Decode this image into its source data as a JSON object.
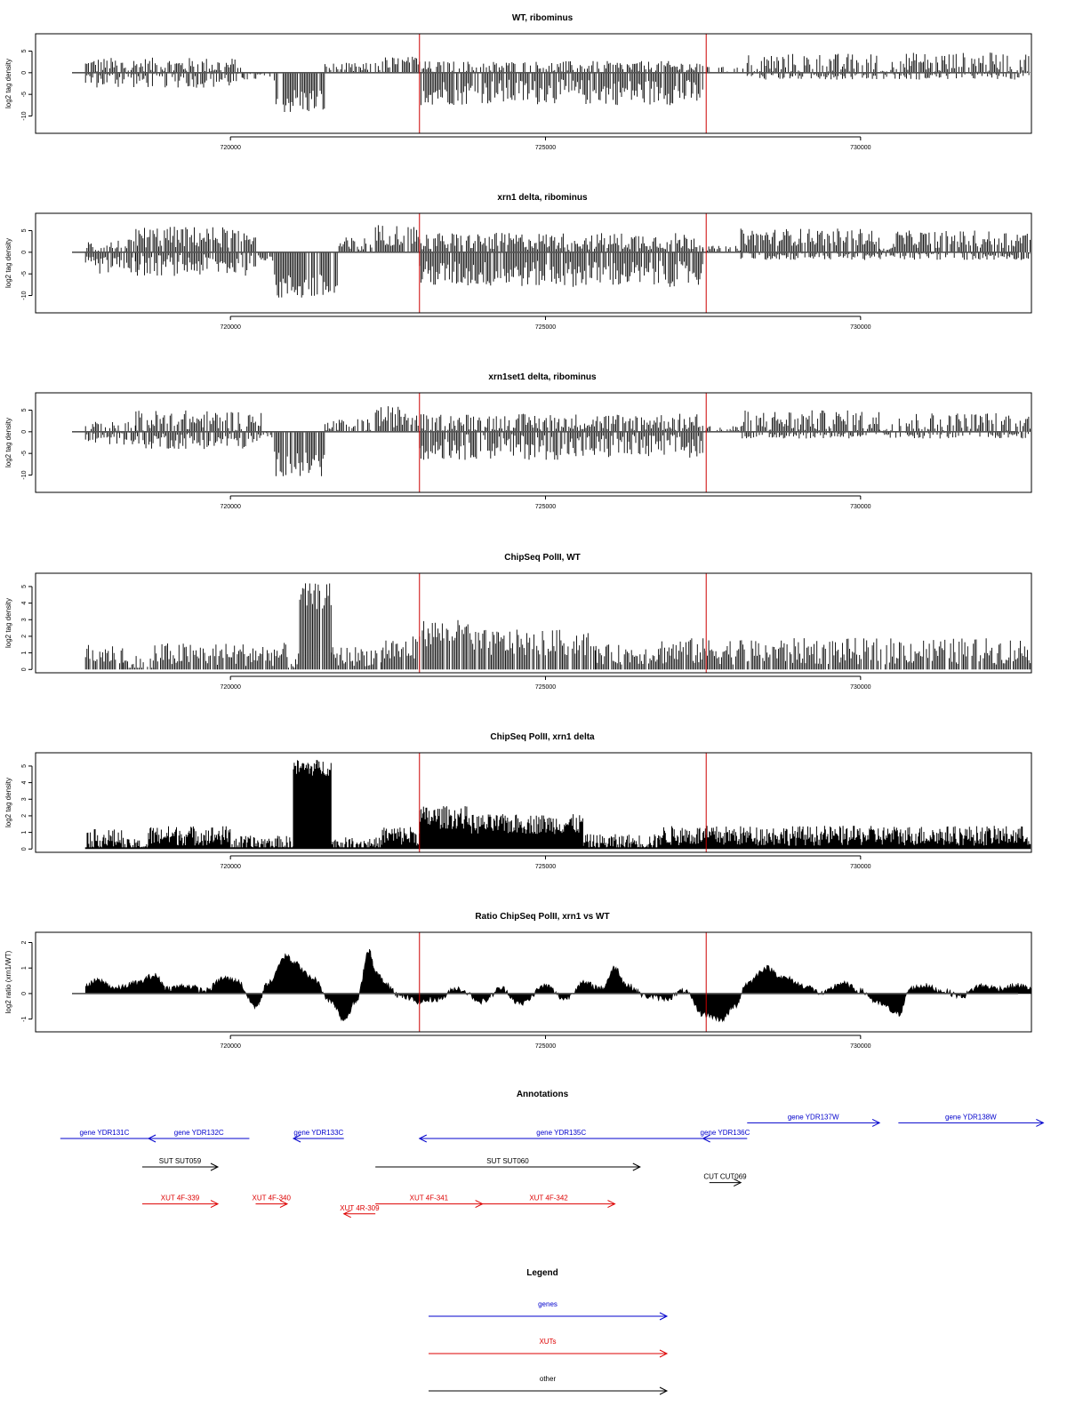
{
  "figure": {
    "x_range": [
      717500,
      732500
    ],
    "x_ticks": [
      720000,
      725000,
      730000
    ],
    "x_tick_labels": [
      "720000",
      "725000",
      "730000"
    ],
    "marker_positions": [
      723000,
      727550
    ],
    "marker_color": "#cc0000"
  },
  "chart_data": [
    {
      "type": "bar",
      "title": "WT, ribominus",
      "ylabel": "log2 tag density",
      "ylim": [
        -14,
        9
      ],
      "y_ticks": [
        -10,
        -5,
        0,
        5
      ],
      "y_tick_labels": [
        "-10",
        "-5",
        "0",
        "5"
      ],
      "profile": [
        {
          "start": 717700,
          "end": 720200,
          "level": 1.5,
          "noise": 2
        },
        {
          "start": 717700,
          "end": 720200,
          "level": -1.5,
          "noise": 2
        },
        {
          "start": 720200,
          "end": 720700,
          "level": -0.8,
          "noise": 1
        },
        {
          "start": 720700,
          "end": 721500,
          "level": -6.5,
          "noise": 3
        },
        {
          "start": 721500,
          "end": 722300,
          "level": 0.8,
          "noise": 1.5
        },
        {
          "start": 722300,
          "end": 723000,
          "level": 1.8,
          "noise": 2
        },
        {
          "start": 723000,
          "end": 727500,
          "level": -4.5,
          "noise": 3
        },
        {
          "start": 723000,
          "end": 727500,
          "level": 1.2,
          "noise": 1.5
        },
        {
          "start": 727500,
          "end": 728200,
          "level": 0.4,
          "noise": 1
        },
        {
          "start": 728200,
          "end": 730300,
          "level": 2,
          "noise": 2.5
        },
        {
          "start": 730300,
          "end": 730500,
          "level": 0.3,
          "noise": 0.5
        },
        {
          "start": 730500,
          "end": 732700,
          "level": 2.2,
          "noise": 2.5
        },
        {
          "start": 728200,
          "end": 732700,
          "level": -0.6,
          "noise": 1
        }
      ]
    },
    {
      "type": "bar",
      "title": "xrn1 delta, ribominus",
      "ylabel": "log2 tag density",
      "ylim": [
        -14,
        9
      ],
      "y_ticks": [
        -10,
        -5,
        0,
        5
      ],
      "y_tick_labels": [
        "-10",
        "-5",
        "0",
        "5"
      ],
      "profile": [
        {
          "start": 717700,
          "end": 718500,
          "level": 1,
          "noise": 2
        },
        {
          "start": 717700,
          "end": 718500,
          "level": -3,
          "noise": 2
        },
        {
          "start": 718500,
          "end": 720400,
          "level": 3.5,
          "noise": 2.5
        },
        {
          "start": 718500,
          "end": 720400,
          "level": -3,
          "noise": 2.5
        },
        {
          "start": 720400,
          "end": 720700,
          "level": -1,
          "noise": 1
        },
        {
          "start": 720700,
          "end": 721700,
          "level": -8,
          "noise": 3
        },
        {
          "start": 721700,
          "end": 722300,
          "level": 1.5,
          "noise": 2
        },
        {
          "start": 722300,
          "end": 723000,
          "level": 4,
          "noise": 2.5
        },
        {
          "start": 723000,
          "end": 727500,
          "level": -5,
          "noise": 3
        },
        {
          "start": 723000,
          "end": 727500,
          "level": 2.5,
          "noise": 2
        },
        {
          "start": 727500,
          "end": 728100,
          "level": 0.5,
          "noise": 1
        },
        {
          "start": 728100,
          "end": 730300,
          "level": 3.5,
          "noise": 2
        },
        {
          "start": 730300,
          "end": 730500,
          "level": 0.5,
          "noise": 0.5
        },
        {
          "start": 730500,
          "end": 732700,
          "level": 3,
          "noise": 2
        },
        {
          "start": 728100,
          "end": 732700,
          "level": -0.8,
          "noise": 1
        }
      ]
    },
    {
      "type": "bar",
      "title": "xrn1set1 delta, ribominus",
      "ylabel": "log2 tag density",
      "ylim": [
        -14,
        9
      ],
      "y_ticks": [
        -10,
        -5,
        0,
        5
      ],
      "y_tick_labels": [
        "-10",
        "-5",
        "0",
        "5"
      ],
      "profile": [
        {
          "start": 717700,
          "end": 718500,
          "level": 0.8,
          "noise": 1.5
        },
        {
          "start": 717700,
          "end": 718500,
          "level": -1.5,
          "noise": 1.5
        },
        {
          "start": 718500,
          "end": 720500,
          "level": 2.5,
          "noise": 2.5
        },
        {
          "start": 718500,
          "end": 720500,
          "level": -2,
          "noise": 2
        },
        {
          "start": 720500,
          "end": 720700,
          "level": -0.5,
          "noise": 0.8
        },
        {
          "start": 720700,
          "end": 721500,
          "level": -7.5,
          "noise": 3
        },
        {
          "start": 721500,
          "end": 722300,
          "level": 1,
          "noise": 2
        },
        {
          "start": 722300,
          "end": 723000,
          "level": 3.5,
          "noise": 2.5
        },
        {
          "start": 723000,
          "end": 727500,
          "level": -3.5,
          "noise": 3
        },
        {
          "start": 723000,
          "end": 727500,
          "level": 2.2,
          "noise": 2
        },
        {
          "start": 727500,
          "end": 728100,
          "level": 0.5,
          "noise": 1
        },
        {
          "start": 728100,
          "end": 730300,
          "level": 2.5,
          "noise": 2.5
        },
        {
          "start": 730300,
          "end": 730500,
          "level": 0.5,
          "noise": 0.5
        },
        {
          "start": 730500,
          "end": 732700,
          "level": 2,
          "noise": 2.5
        },
        {
          "start": 728100,
          "end": 732700,
          "level": -0.6,
          "noise": 1
        }
      ]
    },
    {
      "type": "bar",
      "title": "ChipSeq PolII, WT",
      "ylabel": "log2 tag density",
      "ylim": [
        -0.2,
        5.8
      ],
      "y_ticks": [
        0,
        1,
        2,
        3,
        4,
        5
      ],
      "y_tick_labels": [
        "0",
        "1",
        "2",
        "3",
        "4",
        "5"
      ],
      "profile": [
        {
          "start": 717700,
          "end": 718300,
          "level": 0.9,
          "noise": 0.6
        },
        {
          "start": 718300,
          "end": 718800,
          "level": 0.3,
          "noise": 0.6
        },
        {
          "start": 718800,
          "end": 720900,
          "level": 0.9,
          "noise": 0.7
        },
        {
          "start": 720900,
          "end": 721100,
          "level": 0.5,
          "noise": 0.5
        },
        {
          "start": 721100,
          "end": 721600,
          "level": 4.4,
          "noise": 0.8
        },
        {
          "start": 721600,
          "end": 722400,
          "level": 0.8,
          "noise": 0.6
        },
        {
          "start": 722400,
          "end": 723000,
          "level": 1.2,
          "noise": 0.8
        },
        {
          "start": 723000,
          "end": 723800,
          "level": 2.2,
          "noise": 0.8
        },
        {
          "start": 723800,
          "end": 725800,
          "level": 1.6,
          "noise": 0.8
        },
        {
          "start": 725800,
          "end": 726800,
          "level": 0.9,
          "noise": 0.6
        },
        {
          "start": 726800,
          "end": 732700,
          "level": 1.1,
          "noise": 0.8
        }
      ]
    },
    {
      "type": "area",
      "title": "ChipSeq PolII, xrn1 delta",
      "ylabel": "log2 tag density",
      "ylim": [
        -0.2,
        5.8
      ],
      "y_ticks": [
        0,
        1,
        2,
        3,
        4,
        5
      ],
      "y_tick_labels": [
        "0",
        "1",
        "2",
        "3",
        "4",
        "5"
      ],
      "profile": [
        {
          "start": 717700,
          "end": 718300,
          "level": 0.6,
          "noise": 0.6
        },
        {
          "start": 718300,
          "end": 718700,
          "level": 0.2,
          "noise": 0.4
        },
        {
          "start": 718700,
          "end": 720000,
          "level": 0.8,
          "noise": 0.6
        },
        {
          "start": 720000,
          "end": 721000,
          "level": 0.3,
          "noise": 0.5
        },
        {
          "start": 721000,
          "end": 721600,
          "level": 4.9,
          "noise": 0.5
        },
        {
          "start": 721600,
          "end": 722400,
          "level": 0.3,
          "noise": 0.4
        },
        {
          "start": 722400,
          "end": 723000,
          "level": 0.8,
          "noise": 0.6
        },
        {
          "start": 723000,
          "end": 723800,
          "level": 1.9,
          "noise": 0.7
        },
        {
          "start": 723800,
          "end": 725600,
          "level": 1.5,
          "noise": 0.6
        },
        {
          "start": 725600,
          "end": 726800,
          "level": 0.4,
          "noise": 0.5
        },
        {
          "start": 726800,
          "end": 732700,
          "level": 0.8,
          "noise": 0.6
        }
      ]
    },
    {
      "type": "area",
      "title": "Ratio ChipSeq PolII, xrn1 vs WT",
      "ylabel": "log2 ratio (xrn1/WT)",
      "ylim": [
        -1.5,
        2.4
      ],
      "y_ticks": [
        -1,
        0,
        1,
        2
      ],
      "y_tick_labels": [
        "-1",
        "0",
        "1",
        "2"
      ],
      "x": [
        717700,
        717900,
        718200,
        718500,
        718800,
        719000,
        719300,
        719600,
        719900,
        720100,
        720400,
        720600,
        720900,
        721000,
        721300,
        721600,
        721800,
        722000,
        722200,
        722300,
        722500,
        722700,
        723000,
        723300,
        723600,
        724000,
        724300,
        724600,
        725000,
        725300,
        725600,
        725900,
        726100,
        726300,
        726600,
        726900,
        727200,
        727500,
        727800,
        728000,
        728200,
        728500,
        728800,
        729100,
        729400,
        729700,
        730000,
        730300,
        730600,
        730800,
        731000,
        731300,
        731600,
        731900,
        732200,
        732500,
        732700
      ],
      "values": [
        0.3,
        0.5,
        0.2,
        0.4,
        0.7,
        0.2,
        0.3,
        0.1,
        0.6,
        0.5,
        -0.5,
        0.4,
        1.5,
        1.2,
        0.6,
        -0.3,
        -1.0,
        -0.3,
        1.7,
        0.8,
        0.3,
        -0.1,
        -0.3,
        -0.2,
        0.2,
        -0.3,
        0.2,
        -0.4,
        0.3,
        -0.2,
        0.4,
        0.2,
        1.0,
        0.3,
        -0.1,
        -0.2,
        0.1,
        -0.8,
        -1.0,
        -0.5,
        0.4,
        1.0,
        0.6,
        0.3,
        0.0,
        0.4,
        0.1,
        -0.4,
        -0.8,
        0.2,
        0.3,
        0.1,
        -0.1,
        0.3,
        0.2,
        0.3,
        0.2
      ]
    }
  ],
  "annotations": {
    "title": "Annotations",
    "items": [
      {
        "label": "gene YDR131C",
        "start": 717300,
        "end": 718700,
        "dir": "none",
        "row": 0,
        "color": "#0000cc"
      },
      {
        "label": "gene YDR132C",
        "start": 718700,
        "end": 720300,
        "dir": "left",
        "row": 0,
        "color": "#0000cc"
      },
      {
        "label": "gene YDR133C",
        "start": 721000,
        "end": 721800,
        "dir": "left",
        "row": 0,
        "color": "#0000cc"
      },
      {
        "label": "gene YDR135C",
        "start": 723000,
        "end": 727500,
        "dir": "left",
        "row": 0,
        "color": "#0000cc"
      },
      {
        "label": "gene YDR136C",
        "start": 727500,
        "end": 728200,
        "dir": "left",
        "row": 0,
        "color": "#0000cc"
      },
      {
        "label": "gene YDR137W",
        "start": 728200,
        "end": 730300,
        "dir": "right",
        "row": -0.55,
        "color": "#0000cc"
      },
      {
        "label": "gene YDR138W",
        "start": 730600,
        "end": 732900,
        "dir": "right",
        "row": -0.55,
        "color": "#0000cc"
      },
      {
        "label": "SUT SUT059",
        "start": 718600,
        "end": 719800,
        "dir": "right",
        "row": 1,
        "color": "#000000"
      },
      {
        "label": "SUT SUT060",
        "start": 722300,
        "end": 726500,
        "dir": "right",
        "row": 1,
        "color": "#000000"
      },
      {
        "label": "CUT CUT069",
        "start": 727600,
        "end": 728100,
        "dir": "right",
        "row": 1.55,
        "color": "#000000"
      },
      {
        "label": "XUT 4F-339",
        "start": 718600,
        "end": 719800,
        "dir": "right",
        "row": 2.3,
        "color": "#dd0000"
      },
      {
        "label": "XUT 4F-340",
        "start": 720400,
        "end": 720900,
        "dir": "right",
        "row": 2.3,
        "color": "#dd0000"
      },
      {
        "label": "XUT 4R-309",
        "start": 721800,
        "end": 722300,
        "dir": "left",
        "row": 2.65,
        "color": "#dd0000"
      },
      {
        "label": "XUT 4F-341",
        "start": 722300,
        "end": 724000,
        "dir": "right",
        "row": 2.3,
        "color": "#dd0000"
      },
      {
        "label": "XUT 4F-342",
        "start": 724000,
        "end": 726100,
        "dir": "right",
        "row": 2.3,
        "color": "#dd0000"
      }
    ]
  },
  "legend": {
    "title": "Legend",
    "items": [
      {
        "label": "genes",
        "color": "#0000cc"
      },
      {
        "label": "XUTs",
        "color": "#dd0000"
      },
      {
        "label": "other",
        "color": "#000000"
      }
    ]
  }
}
